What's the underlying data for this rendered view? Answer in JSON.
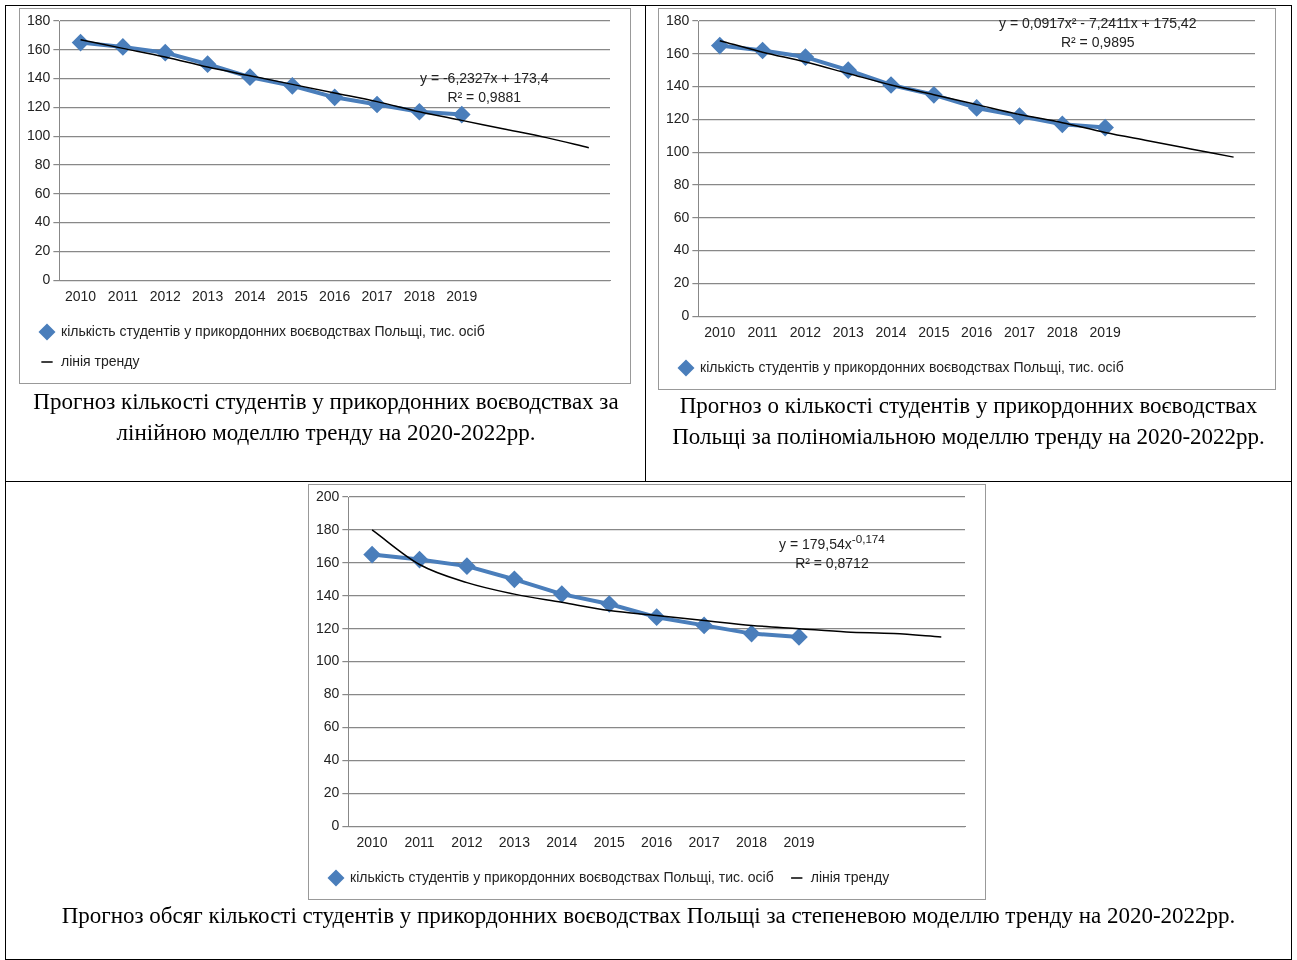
{
  "chart_data": [
    {
      "type": "line",
      "categories": [
        "2010",
        "2011",
        "2012",
        "2013",
        "2014",
        "2015",
        "2016",
        "2017",
        "2018",
        "2019",
        null,
        null,
        null
      ],
      "series": [
        {
          "name": "кількість студентів у прикордонних воєводствах Польщі, тис. осіб",
          "color": "#4a7ebb",
          "marker": "diamond",
          "values": [
            165,
            162,
            158,
            150,
            141,
            135,
            127,
            122,
            117,
            115,
            null,
            null,
            null
          ]
        },
        {
          "name": "лінія тренду",
          "color": "#000000",
          "marker": "none",
          "values": [
            167,
            161,
            155,
            148,
            142,
            136,
            130,
            124,
            117,
            111,
            105,
            99,
            92
          ]
        }
      ],
      "ylim": [
        0,
        180
      ],
      "yticks": [
        0,
        20,
        40,
        60,
        80,
        100,
        120,
        140,
        160,
        180
      ],
      "grid": "y",
      "legend": "bottom",
      "annotations": [
        "y = -6,2327x + 173,4",
        "R² = 0,9881",
        "Прогноз кількості студентів у прикордонних воєводствах за лінійною моделлю тренду на 2020-2022рр."
      ]
    },
    {
      "type": "line",
      "categories": [
        "2010",
        "2011",
        "2012",
        "2013",
        "2014",
        "2015",
        "2016",
        "2017",
        "2018",
        "2019",
        null,
        null,
        null
      ],
      "series": [
        {
          "name": "кількість студентів у прикордонних воєводствах Польщі, тис. осіб",
          "color": "#4a7ebb",
          "marker": "diamond",
          "values": [
            165,
            162,
            158,
            150,
            141,
            135,
            127,
            122,
            117,
            115,
            null,
            null,
            null
          ]
        },
        {
          "color": "#000000",
          "marker": "none",
          "values": [
            168,
            161,
            155,
            148,
            141,
            135,
            129,
            123,
            118,
            112,
            107,
            102,
            97
          ]
        }
      ],
      "ylim": [
        0,
        180
      ],
      "yticks": [
        0,
        20,
        40,
        60,
        80,
        100,
        120,
        140,
        160,
        180
      ],
      "grid": "y",
      "legend": "bottom",
      "annotations": [
        "y = 0,0917x² - 7,2411x + 175,42",
        "R² = 0,9895",
        "Прогноз о кількості студентів у прикордонних воєводствах Польщі за поліноміальною моделлю тренду на 2020-2022рр."
      ]
    },
    {
      "type": "line",
      "categories": [
        "2010",
        "2011",
        "2012",
        "2013",
        "2014",
        "2015",
        "2016",
        "2017",
        "2018",
        "2019",
        null,
        null,
        null
      ],
      "series": [
        {
          "name": "кількість студентів у прикордонних воєводствах Польщі, тис. осіб",
          "color": "#4a7ebb",
          "marker": "diamond",
          "values": [
            165,
            162,
            158,
            150,
            141,
            135,
            127,
            122,
            117,
            115,
            null,
            null,
            null
          ]
        },
        {
          "name": "лінія тренду",
          "color": "#000000",
          "marker": "none",
          "values": [
            180,
            159,
            148,
            141,
            136,
            131,
            128,
            125,
            122,
            120,
            118,
            117,
            115
          ]
        }
      ],
      "ylim": [
        0,
        200
      ],
      "yticks": [
        0,
        20,
        40,
        60,
        80,
        100,
        120,
        140,
        160,
        180,
        200
      ],
      "grid": "y",
      "legend": "bottom",
      "annotations": [
        "y = 179,54x$^{-0,174}$",
        "R² = 0,8712",
        "Прогноз обсяг кількості студентів у прикордонних воєводствах Польщі за степеневою моделлю тренду на 2020-2022рр."
      ]
    }
  ]
}
